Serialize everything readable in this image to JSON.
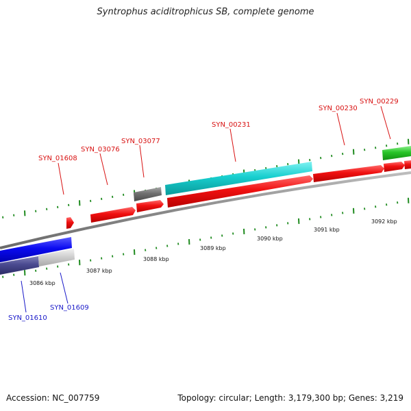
{
  "title": "Syntrophus aciditrophicus SB, complete genome",
  "footer": {
    "accession": "Accession: NC_007759",
    "summary": "Topology: circular; Length: 3,179,300 bp; Genes: 3,219"
  },
  "colors": {
    "backbone": "#888888",
    "tick": "#1e8a1e",
    "label_fwd": "#d81010",
    "label_rev": "#1818c8"
  },
  "scale_labels": [
    "3086 kbp",
    "3087 kbp",
    "3088 kbp",
    "3089 kbp",
    "3090 kbp",
    "3091 kbp",
    "3092 kbp"
  ],
  "gene_labels": {
    "syn_01608": "SYN_01608",
    "syn_03076": "SYN_03076",
    "syn_03077": "SYN_03077",
    "syn_00231": "SYN_00231",
    "syn_00230": "SYN_00230",
    "syn_00229": "SYN_00229",
    "syn_01610": "SYN_01610",
    "syn_01609": "SYN_01609"
  }
}
